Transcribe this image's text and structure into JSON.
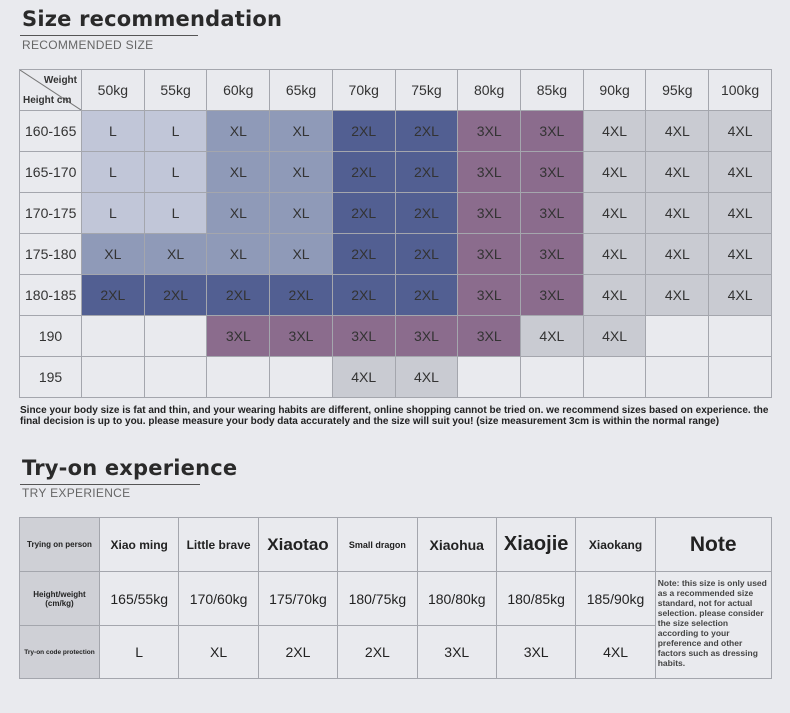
{
  "section1": {
    "title": "Size recommendation",
    "subtitle": "RECOMMENDED SIZE"
  },
  "size_table": {
    "corner_weight": "Weight",
    "corner_height": "Height cm",
    "weights": [
      "50kg",
      "55kg",
      "60kg",
      "65kg",
      "70kg",
      "75kg",
      "80kg",
      "85kg",
      "90kg",
      "95kg",
      "100kg"
    ],
    "rows": [
      {
        "height": "160-165",
        "sizes": [
          "L",
          "L",
          "XL",
          "XL",
          "2XL",
          "2XL",
          "3XL",
          "3XL",
          "4XL",
          "4XL",
          "4XL"
        ]
      },
      {
        "height": "165-170",
        "sizes": [
          "L",
          "L",
          "XL",
          "XL",
          "2XL",
          "2XL",
          "3XL",
          "3XL",
          "4XL",
          "4XL",
          "4XL"
        ]
      },
      {
        "height": "170-175",
        "sizes": [
          "L",
          "L",
          "XL",
          "XL",
          "2XL",
          "2XL",
          "3XL",
          "3XL",
          "4XL",
          "4XL",
          "4XL"
        ]
      },
      {
        "height": "175-180",
        "sizes": [
          "XL",
          "XL",
          "XL",
          "XL",
          "2XL",
          "2XL",
          "3XL",
          "3XL",
          "4XL",
          "4XL",
          "4XL"
        ]
      },
      {
        "height": "180-185",
        "sizes": [
          "2XL",
          "2XL",
          "2XL",
          "2XL",
          "2XL",
          "2XL",
          "3XL",
          "3XL",
          "4XL",
          "4XL",
          "4XL"
        ]
      },
      {
        "height": "190",
        "sizes": [
          "",
          "",
          "3XL",
          "3XL",
          "3XL",
          "3XL",
          "3XL",
          "4XL",
          "4XL",
          "",
          ""
        ]
      },
      {
        "height": "195",
        "sizes": [
          "",
          "",
          "",
          "",
          "4XL",
          "4XL",
          "",
          "",
          "",
          "",
          ""
        ]
      }
    ],
    "colors": {
      "L": "#c1c6d8",
      "XL": "#8f9ab8",
      "2XL": "#525f92",
      "3XL": "#8b6c8d",
      "4XL": "#c9cbd2"
    }
  },
  "disclaimer": "Since your body size is fat and thin, and your wearing habits are different, online shopping cannot be tried on. we recommend sizes based on experience. the final decision is up to you. please measure your body data accurately and the size will suit you! (size measurement 3cm is within the normal range)",
  "section2": {
    "title": "Try-on experience",
    "subtitle": "TRY EXPERIENCE"
  },
  "try_table": {
    "row_labels": [
      "Trying on person",
      "Height/weight (cm/kg)",
      "Try-on code protection"
    ],
    "people": [
      "Xiao ming",
      "Little brave",
      "Xiaotao",
      "Small dragon",
      "Xiaohua",
      "Xiaojie",
      "Xiaokang"
    ],
    "height_weight": [
      "165/55kg",
      "170/60kg",
      "175/70kg",
      "180/75kg",
      "180/80kg",
      "180/85kg",
      "185/90kg"
    ],
    "sizes": [
      "L",
      "XL",
      "2XL",
      "2XL",
      "3XL",
      "3XL",
      "4XL"
    ],
    "note_header": "Note",
    "note_text": "Note: this size is only used as a recommended size standard, not for actual selection. please consider the size selection according to your preference and other factors such as dressing habits."
  }
}
